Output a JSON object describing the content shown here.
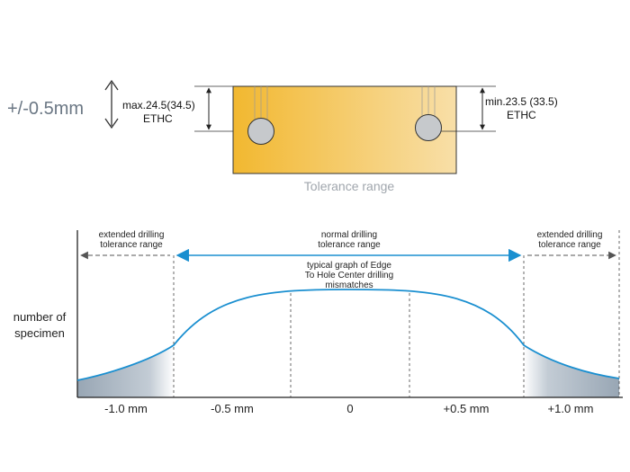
{
  "top": {
    "tolerance": "+/-0.5mm",
    "left_dim": {
      "line1": "max.24.5(34.5)",
      "line2": "ETHC"
    },
    "right_dim": {
      "line1": "min.23.5 (33.5)",
      "line2": "ETHC"
    },
    "caption": "Tolerance range"
  },
  "graph": {
    "ylabel_line1": "number of",
    "ylabel_line2": "specimen",
    "ext_left_line1": "extended drilling",
    "ext_left_line2": "tolerance range",
    "normal_line1": "normal drilling",
    "normal_line2": "tolerance range",
    "ext_right_line1": "extended drilling",
    "ext_right_line2": "tolerance range",
    "curve_line1": "typical graph of Edge",
    "curve_line2": "To Hole Center drilling",
    "curve_line3": "mismatches",
    "xticks": [
      "-1.0 mm",
      "-0.5 mm",
      "0",
      "+0.5 mm",
      "+1.0 mm"
    ]
  },
  "colors": {
    "curve": "#1a8fd0",
    "board_left": "#f2b830",
    "board_right": "#f8dfa8",
    "shade": "#a8b4c0"
  }
}
